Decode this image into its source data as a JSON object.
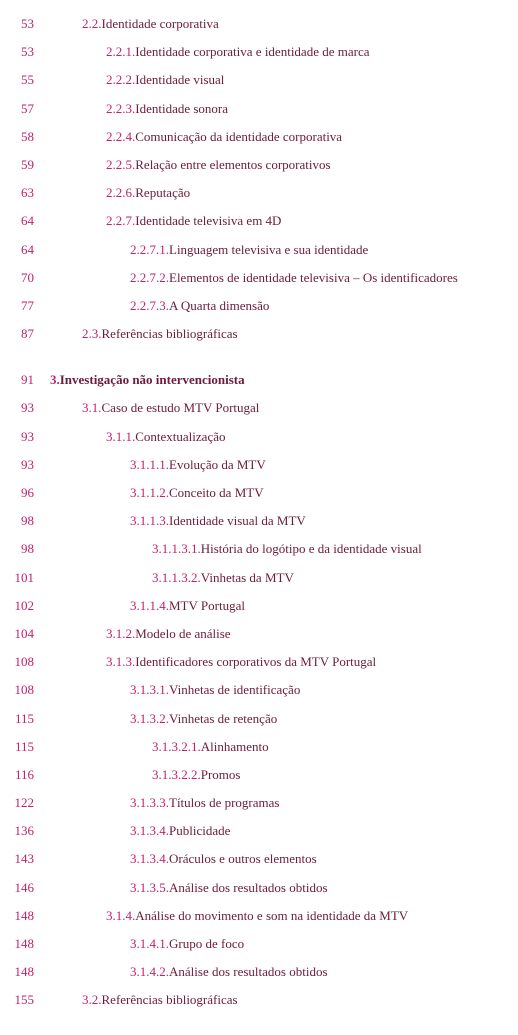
{
  "colors": {
    "page_num": "#c21f6e",
    "section_num": "#c21f6e",
    "title": "#6b1b3c",
    "background": "#ffffff"
  },
  "typography": {
    "font_family": "Georgia, serif",
    "font_size": 13
  },
  "entries": [
    {
      "page": "53",
      "num": "2.2.",
      "title": "Identidade corporativa",
      "indent": 1,
      "bold": false
    },
    {
      "page": "53",
      "num": "2.2.1.",
      "title": "Identidade corporativa e identidade de marca",
      "indent": 2,
      "bold": false
    },
    {
      "page": "55",
      "num": "2.2.2.",
      "title": "Identidade visual",
      "indent": 2,
      "bold": false
    },
    {
      "page": "57",
      "num": "2.2.3.",
      "title": "Identidade sonora",
      "indent": 2,
      "bold": false
    },
    {
      "page": "58",
      "num": "2.2.4.",
      "title": "Comunicação da identidade corporativa",
      "indent": 2,
      "bold": false
    },
    {
      "page": "59",
      "num": "2.2.5.",
      "title": "Relação entre elementos corporativos",
      "indent": 2,
      "bold": false
    },
    {
      "page": "63",
      "num": "2.2.6.",
      "title": "Reputação",
      "indent": 2,
      "bold": false
    },
    {
      "page": "64",
      "num": "2.2.7.",
      "title": "Identidade televisiva em 4D",
      "indent": 2,
      "bold": false
    },
    {
      "page": "64",
      "num": "2.2.7.1.",
      "title": "Linguagem televisiva e sua identidade",
      "indent": 3,
      "bold": false
    },
    {
      "page": "70",
      "num": "2.2.7.2.",
      "title": "Elementos de identidade televisiva – Os identificadores",
      "indent": 3,
      "bold": false
    },
    {
      "page": "77",
      "num": "2.2.7.3.",
      "title": "A Quarta dimensão",
      "indent": 3,
      "bold": false
    },
    {
      "page": "87",
      "num": "2.3.",
      "title": "Referências bibliográficas",
      "indent": 1,
      "bold": false
    },
    {
      "spacer": true
    },
    {
      "page": "91",
      "num": "3.",
      "title": "Investigação não intervencionista",
      "indent": 0,
      "bold": true
    },
    {
      "page": "93",
      "num": "3.1.",
      "title": "Caso de estudo MTV Portugal",
      "indent": 1,
      "bold": false
    },
    {
      "page": "93",
      "num": "3.1.1.",
      "title": "Contextualização",
      "indent": 2,
      "bold": false
    },
    {
      "page": "93",
      "num": "3.1.1.1.",
      "title": "Evolução da MTV",
      "indent": 3,
      "bold": false
    },
    {
      "page": "96",
      "num": "3.1.1.2.",
      "title": "Conceito da MTV",
      "indent": 3,
      "bold": false
    },
    {
      "page": "98",
      "num": "3.1.1.3.",
      "title": "Identidade visual da MTV",
      "indent": 3,
      "bold": false
    },
    {
      "page": "98",
      "num": "3.1.1.3.1.",
      "title": "História do logótipo e da identidade visual",
      "indent": 4,
      "bold": false
    },
    {
      "page": "101",
      "num": "3.1.1.3.2.",
      "title": "Vinhetas da MTV",
      "indent": 4,
      "bold": false
    },
    {
      "page": "102",
      "num": "3.1.1.4.",
      "title": "MTV Portugal",
      "indent": 3,
      "bold": false
    },
    {
      "page": "104",
      "num": "3.1.2.",
      "title": "Modelo de análise",
      "indent": 2,
      "bold": false
    },
    {
      "page": "108",
      "num": "3.1.3.",
      "title": "Identificadores corporativos da MTV Portugal",
      "indent": 2,
      "bold": false
    },
    {
      "page": "108",
      "num": "3.1.3.1.",
      "title": "Vinhetas de identificação",
      "indent": 3,
      "bold": false
    },
    {
      "page": "115",
      "num": "3.1.3.2.",
      "title": "Vinhetas de retenção",
      "indent": 3,
      "bold": false
    },
    {
      "page": "115",
      "num": "3.1.3.2.1.",
      "title": "Alinhamento",
      "indent": 4,
      "bold": false
    },
    {
      "page": "116",
      "num": "3.1.3.2.2.",
      "title": "Promos",
      "indent": 4,
      "bold": false
    },
    {
      "page": "122",
      "num": "3.1.3.3.",
      "title": "Títulos de programas",
      "indent": 3,
      "bold": false
    },
    {
      "page": "136",
      "num": "3.1.3.4.",
      "title": "Publicidade",
      "indent": 3,
      "bold": false
    },
    {
      "page": "143",
      "num": "3.1.3.4.",
      "title": "Oráculos e outros elementos",
      "indent": 3,
      "bold": false
    },
    {
      "page": "146",
      "num": "3.1.3.5.",
      "title": "Análise dos resultados obtidos",
      "indent": 3,
      "bold": false
    },
    {
      "page": "148",
      "num": "3.1.4.",
      "title": "Análise do movimento e som na identidade da MTV",
      "indent": 2,
      "bold": false
    },
    {
      "page": "148",
      "num": "3.1.4.1.",
      "title": "Grupo de foco",
      "indent": 3,
      "bold": false
    },
    {
      "page": "148",
      "num": "3.1.4.2.",
      "title": "Análise dos resultados obtidos",
      "indent": 3,
      "bold": false
    },
    {
      "page": "155",
      "num": "3.2.",
      "title": "Referências bibliográficas",
      "indent": 1,
      "bold": false
    }
  ]
}
